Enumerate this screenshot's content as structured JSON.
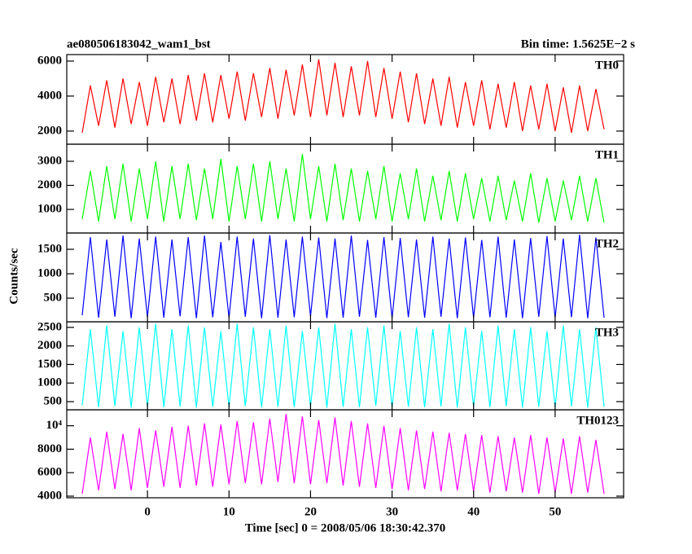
{
  "figure": {
    "title": "ae080506183042_wam1_bst",
    "subtitle": "Bin time: 1.5625E−2 s",
    "ylabel": "Counts/sec",
    "xlabel": "Time [sec] 0 = 2008/05/06 18:30:42.370"
  },
  "chart_data": [
    {
      "type": "line",
      "xlim": [
        -9.9,
        58.4
      ],
      "xticks": [
        0,
        10,
        20,
        30,
        40,
        50
      ],
      "ylim": [
        1250,
        6370
      ],
      "yticks": [
        2000,
        4000,
        6000
      ],
      "x": [
        -8,
        -7,
        -6,
        -5,
        -4,
        -3,
        -2,
        -1,
        0,
        1,
        2,
        3,
        4,
        5,
        6,
        7,
        8,
        9,
        10,
        11,
        12,
        13,
        14,
        15,
        16,
        17,
        18,
        19,
        20,
        21,
        22,
        23,
        24,
        25,
        26,
        27,
        28,
        29,
        30,
        31,
        32,
        33,
        34,
        35,
        36,
        37,
        38,
        39,
        40,
        41,
        42,
        43,
        44,
        45,
        46,
        47,
        48,
        49,
        50,
        51,
        52,
        53,
        54,
        55,
        56
      ],
      "series": [
        {
          "name": "TH0",
          "color": "#ff0000",
          "values": [
            1900,
            4600,
            2300,
            4900,
            2200,
            5000,
            2400,
            4800,
            2300,
            5100,
            2500,
            5000,
            2400,
            5200,
            2600,
            5300,
            2500,
            5200,
            2700,
            5400,
            2600,
            5300,
            2800,
            5600,
            2700,
            5500,
            2900,
            5800,
            2800,
            6100,
            2900,
            5900,
            2800,
            5700,
            2900,
            6000,
            2800,
            5600,
            2700,
            5400,
            2500,
            5300,
            2400,
            5000,
            2300,
            5100,
            2200,
            4800,
            2300,
            4900,
            2100,
            4700,
            2200,
            4800,
            2000,
            4600,
            2100,
            4700,
            2000,
            4500,
            1900,
            4600,
            2000,
            4400,
            2100
          ]
        }
      ]
    },
    {
      "type": "line",
      "xlim": [
        -9.9,
        58.4
      ],
      "xticks": [
        0,
        10,
        20,
        30,
        40,
        50
      ],
      "ylim": [
        20,
        3710
      ],
      "yticks": [
        1000,
        2000,
        3000
      ],
      "x": [
        -8,
        -7,
        -6,
        -5,
        -4,
        -3,
        -2,
        -1,
        0,
        1,
        2,
        3,
        4,
        5,
        6,
        7,
        8,
        9,
        10,
        11,
        12,
        13,
        14,
        15,
        16,
        17,
        18,
        19,
        20,
        21,
        22,
        23,
        24,
        25,
        26,
        27,
        28,
        29,
        30,
        31,
        32,
        33,
        34,
        35,
        36,
        37,
        38,
        39,
        40,
        41,
        42,
        43,
        44,
        45,
        46,
        47,
        48,
        49,
        50,
        51,
        52,
        53,
        54,
        55,
        56
      ],
      "series": [
        {
          "name": "TH1",
          "color": "#00ff00",
          "values": [
            600,
            2600,
            500,
            2800,
            600,
            2900,
            500,
            2700,
            600,
            3000,
            500,
            2800,
            600,
            2900,
            550,
            2700,
            600,
            3100,
            500,
            2800,
            600,
            2900,
            500,
            3000,
            600,
            2700,
            500,
            3300,
            600,
            2800,
            500,
            2900,
            550,
            2700,
            500,
            2600,
            600,
            2800,
            500,
            2500,
            600,
            2700,
            500,
            2400,
            550,
            2600,
            500,
            2500,
            600,
            2300,
            500,
            2400,
            550,
            2200,
            500,
            2500,
            450,
            2300,
            500,
            2200,
            550,
            2400,
            500,
            2300,
            450
          ]
        }
      ]
    },
    {
      "type": "line",
      "xlim": [
        -9.9,
        58.4
      ],
      "xticks": [
        0,
        10,
        20,
        30,
        40,
        50
      ],
      "ylim": [
        17,
        1833
      ],
      "yticks": [
        500,
        1000,
        1500
      ],
      "x": [
        -8,
        -7,
        -6,
        -5,
        -4,
        -3,
        -2,
        -1,
        0,
        1,
        2,
        3,
        4,
        5,
        6,
        7,
        8,
        9,
        10,
        11,
        12,
        13,
        14,
        15,
        16,
        17,
        18,
        19,
        20,
        21,
        22,
        23,
        24,
        25,
        26,
        27,
        28,
        29,
        30,
        31,
        32,
        33,
        34,
        35,
        36,
        37,
        38,
        39,
        40,
        41,
        42,
        43,
        44,
        45,
        46,
        47,
        48,
        49,
        50,
        51,
        52,
        53,
        54,
        55,
        56
      ],
      "series": [
        {
          "name": "TH2",
          "color": "#0000ff",
          "values": [
            150,
            1750,
            100,
            1700,
            120,
            1780,
            90,
            1720,
            110,
            1760,
            100,
            1700,
            130,
            1750,
            90,
            1780,
            110,
            1650,
            100,
            1760,
            120,
            1720,
            90,
            1790,
            100,
            1700,
            110,
            1760,
            130,
            1740,
            90,
            1720,
            100,
            1780,
            120,
            1690,
            100,
            1750,
            90,
            1730,
            110,
            1700,
            100,
            1760,
            120,
            1720,
            90,
            1740,
            100,
            1690,
            110,
            1760,
            100,
            1700,
            90,
            1730,
            120,
            1770,
            100,
            1720,
            110,
            1800,
            90,
            1740,
            100
          ]
        }
      ]
    },
    {
      "type": "line",
      "xlim": [
        -9.9,
        58.4
      ],
      "xticks": [
        0,
        10,
        20,
        30,
        40,
        50
      ],
      "ylim": [
        280,
        2650
      ],
      "yticks": [
        500,
        1000,
        1500,
        2000,
        2500
      ],
      "x": [
        -8,
        -7,
        -6,
        -5,
        -4,
        -3,
        -2,
        -1,
        0,
        1,
        2,
        3,
        4,
        5,
        6,
        7,
        8,
        9,
        10,
        11,
        12,
        13,
        14,
        15,
        16,
        17,
        18,
        19,
        20,
        21,
        22,
        23,
        24,
        25,
        26,
        27,
        28,
        29,
        30,
        31,
        32,
        33,
        34,
        35,
        36,
        37,
        38,
        39,
        40,
        41,
        42,
        43,
        44,
        45,
        46,
        47,
        48,
        49,
        50,
        51,
        52,
        53,
        54,
        55,
        56
      ],
      "series": [
        {
          "name": "TH3",
          "color": "#00ffff",
          "values": [
            400,
            2450,
            350,
            2550,
            380,
            2400,
            340,
            2500,
            360,
            2600,
            350,
            2450,
            370,
            2550,
            340,
            2500,
            360,
            2400,
            350,
            2600,
            380,
            2500,
            340,
            2450,
            360,
            2550,
            350,
            2400,
            370,
            2500,
            340,
            2600,
            360,
            2450,
            350,
            2500,
            380,
            2550,
            340,
            2400,
            360,
            2500,
            350,
            2450,
            370,
            2600,
            340,
            2500,
            360,
            2400,
            350,
            2550,
            380,
            2450,
            340,
            2500,
            360,
            2400,
            350,
            2550,
            370,
            2450,
            340,
            2500,
            360
          ]
        }
      ]
    },
    {
      "type": "line",
      "xlim": [
        -9.9,
        58.4
      ],
      "xticks": [
        0,
        10,
        20,
        30,
        40,
        50
      ],
      "ylim": [
        3860,
        11360
      ],
      "yticks": [
        4000,
        6000,
        8000,
        {
          "value": 10000,
          "label": "10⁴"
        }
      ],
      "x": [
        -8,
        -7,
        -6,
        -5,
        -4,
        -3,
        -2,
        -1,
        0,
        1,
        2,
        3,
        4,
        5,
        6,
        7,
        8,
        9,
        10,
        11,
        12,
        13,
        14,
        15,
        16,
        17,
        18,
        19,
        20,
        21,
        22,
        23,
        24,
        25,
        26,
        27,
        28,
        29,
        30,
        31,
        32,
        33,
        34,
        35,
        36,
        37,
        38,
        39,
        40,
        41,
        42,
        43,
        44,
        45,
        46,
        47,
        48,
        49,
        50,
        51,
        52,
        53,
        54,
        55,
        56
      ],
      "series": [
        {
          "name": "TH0123",
          "color": "#ff00ff",
          "values": [
            4200,
            9000,
            4500,
            9500,
            4600,
            9300,
            4500,
            9800,
            4700,
            9600,
            4800,
            9900,
            4700,
            10000,
            4900,
            10200,
            4800,
            10100,
            5000,
            10400,
            5100,
            10300,
            5000,
            10600,
            5200,
            11000,
            5100,
            10800,
            5000,
            10500,
            5100,
            10700,
            4900,
            10400,
            4800,
            10200,
            4700,
            10000,
            4600,
            9800,
            4500,
            9600,
            4600,
            9500,
            4400,
            9400,
            4500,
            9300,
            4400,
            9200,
            4300,
            9100,
            4400,
            9000,
            4300,
            9200,
            4200,
            9000,
            4300,
            8900,
            4200,
            9100,
            4300,
            8800,
            4200
          ]
        }
      ]
    }
  ]
}
